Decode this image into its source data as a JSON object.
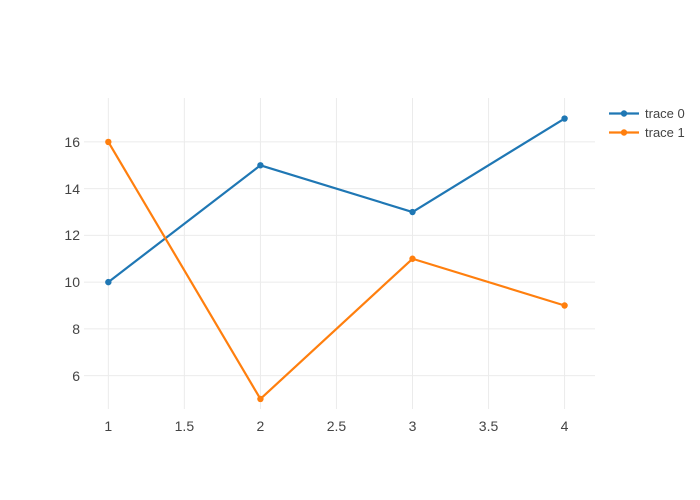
{
  "chart_data": {
    "type": "line",
    "title": "",
    "mode": "lines+markers",
    "series": [
      {
        "name": "trace 0",
        "color": "#1f77b4",
        "x": [
          1,
          2,
          3,
          4
        ],
        "y": [
          10,
          15,
          13,
          17
        ]
      },
      {
        "name": "trace 1",
        "color": "#ff7f0e",
        "x": [
          1,
          2,
          3,
          4
        ],
        "y": [
          16,
          5,
          11,
          9
        ]
      }
    ],
    "xticks": {
      "values": [
        1,
        1.5,
        2,
        2.5,
        3,
        3.5,
        4
      ],
      "labels": [
        "1",
        "1.5",
        "2",
        "2.5",
        "3",
        "3.5",
        "4"
      ]
    },
    "yticks": {
      "values": [
        6,
        8,
        10,
        12,
        14,
        16
      ],
      "labels": [
        "6",
        "8",
        "10",
        "12",
        "14",
        "16"
      ]
    },
    "xlim": [
      0.84,
      4.2
    ],
    "ylim": [
      4.57,
      17.88
    ],
    "xlabel": "",
    "ylabel": "",
    "grid": true,
    "legend_position": "outside-top-right",
    "line_width": 2.2,
    "marker_size": 6.4
  },
  "colors": {
    "background": "#ffffff",
    "grid": "#ebebeb",
    "tick_text": "#444444",
    "legend_text": "#444444"
  }
}
